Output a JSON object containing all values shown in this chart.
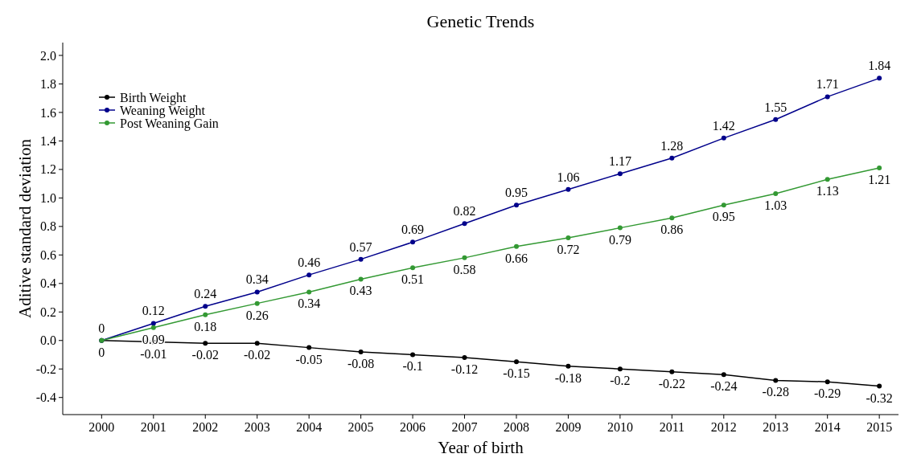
{
  "chart_data": {
    "type": "line",
    "title": "Genetic Trends",
    "xlabel": "Year of birth",
    "ylabel": "Aditive standard deviation",
    "x": [
      2000,
      2001,
      2002,
      2003,
      2004,
      2005,
      2006,
      2007,
      2008,
      2009,
      2010,
      2011,
      2012,
      2013,
      2014,
      2015
    ],
    "series": [
      {
        "name": "Birth Weight",
        "color": "#000000",
        "values": [
          0,
          -0.01,
          -0.02,
          -0.02,
          -0.05,
          -0.08,
          -0.1,
          -0.12,
          -0.15,
          -0.18,
          -0.2,
          -0.22,
          -0.24,
          -0.28,
          -0.29,
          -0.32
        ],
        "value_labels": [
          "0",
          "-0.01",
          "-0.02",
          "-0.02",
          "-0.05",
          "-0.08",
          "-0.1",
          "-0.12",
          "-0.15",
          "-0.18",
          "-0.2",
          "-0.22",
          "-0.24",
          "-0.28",
          "-0.29",
          "-0.32"
        ]
      },
      {
        "name": "Weaning Weight",
        "color": "#00008b",
        "values": [
          0,
          0.12,
          0.24,
          0.34,
          0.46,
          0.57,
          0.69,
          0.82,
          0.95,
          1.06,
          1.17,
          1.28,
          1.42,
          1.55,
          1.71,
          1.84
        ],
        "value_labels": [
          "0",
          "0.12",
          "0.24",
          "0.34",
          "0.46",
          "0.57",
          "0.69",
          "0.82",
          "0.95",
          "1.06",
          "1.17",
          "1.28",
          "1.42",
          "1.55",
          "1.71",
          "1.84"
        ]
      },
      {
        "name": "Post Weaning Gain",
        "color": "#339933",
        "values": [
          0,
          0.09,
          0.18,
          0.26,
          0.34,
          0.43,
          0.51,
          0.58,
          0.66,
          0.72,
          0.79,
          0.86,
          0.95,
          1.03,
          1.13,
          1.21
        ],
        "value_labels": [
          null,
          "0.09",
          "0.18",
          "0.26",
          "0.34",
          "0.43",
          "0.51",
          "0.58",
          "0.66",
          "0.72",
          "0.79",
          "0.86",
          "0.95",
          "1.03",
          "1.13",
          "1.21"
        ]
      }
    ],
    "xlim": [
      1999.25,
      2015.37
    ],
    "xticks": [
      2000,
      2001,
      2002,
      2003,
      2004,
      2005,
      2006,
      2007,
      2008,
      2009,
      2010,
      2011,
      2012,
      2013,
      2014,
      2015
    ],
    "ylim": [
      -0.52,
      2.09
    ],
    "yticks": [
      {
        "value": -0.4,
        "label": "-0.4"
      },
      {
        "value": -0.2,
        "label": "-0.2"
      },
      {
        "value": 0,
        "label": "0.0"
      },
      {
        "value": 0.2,
        "label": "0.2"
      },
      {
        "value": 0.4,
        "label": "0.4"
      },
      {
        "value": 0.6,
        "label": "0.6"
      },
      {
        "value": 0.8,
        "label": "0.8"
      },
      {
        "value": 1,
        "label": "1.0"
      },
      {
        "value": 1.2,
        "label": "1.2"
      },
      {
        "value": 1.4,
        "label": "1.4"
      },
      {
        "value": 1.6,
        "label": "1.6"
      },
      {
        "value": 1.8,
        "label": "1.8"
      },
      {
        "value": 2,
        "label": "2.0"
      }
    ],
    "grid": false,
    "legend": "top left",
    "marker": "circle",
    "line_style": "solid"
  }
}
